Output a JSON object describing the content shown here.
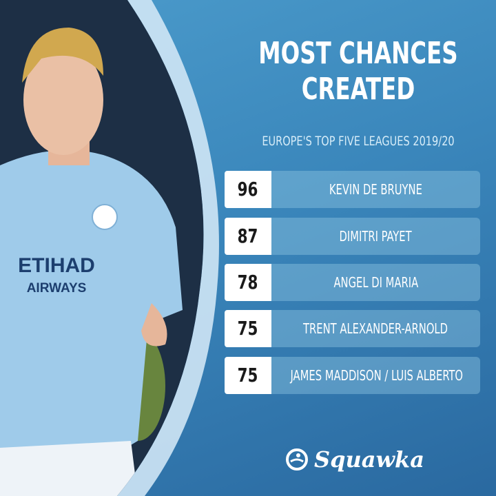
{
  "title_line1": "MOST CHANCES",
  "title_line2": "CREATED",
  "subtitle": "EUROPE'S TOP FIVE LEAGUES 2019/20",
  "rows": [
    {
      "value": "96",
      "player": "KEVIN DE BRUYNE"
    },
    {
      "value": "87",
      "player": "DIMITRI PAYET"
    },
    {
      "value": "78",
      "player": "ANGEL DI MARIA"
    },
    {
      "value": "75",
      "player": "TRENT ALEXANDER-ARNOLD"
    },
    {
      "value": "75",
      "player": "JAMES MADDISON / LUIS ALBERTO"
    }
  ],
  "brand": "Squawka",
  "shirt_sponsor": "ETIHAD AIRWAYS",
  "colors": {
    "background": "#3a86bb",
    "shirt": "#9fcbea",
    "number_box": "#ffffff"
  },
  "chart_data": {
    "type": "table",
    "title": "MOST CHANCES CREATED",
    "subtitle": "EUROPE'S TOP FIVE LEAGUES 2019/20",
    "categories": [
      "KEVIN DE BRUYNE",
      "DIMITRI PAYET",
      "ANGEL DI MARIA",
      "TRENT ALEXANDER-ARNOLD",
      "JAMES MADDISON / LUIS ALBERTO"
    ],
    "values": [
      96,
      87,
      78,
      75,
      75
    ]
  }
}
